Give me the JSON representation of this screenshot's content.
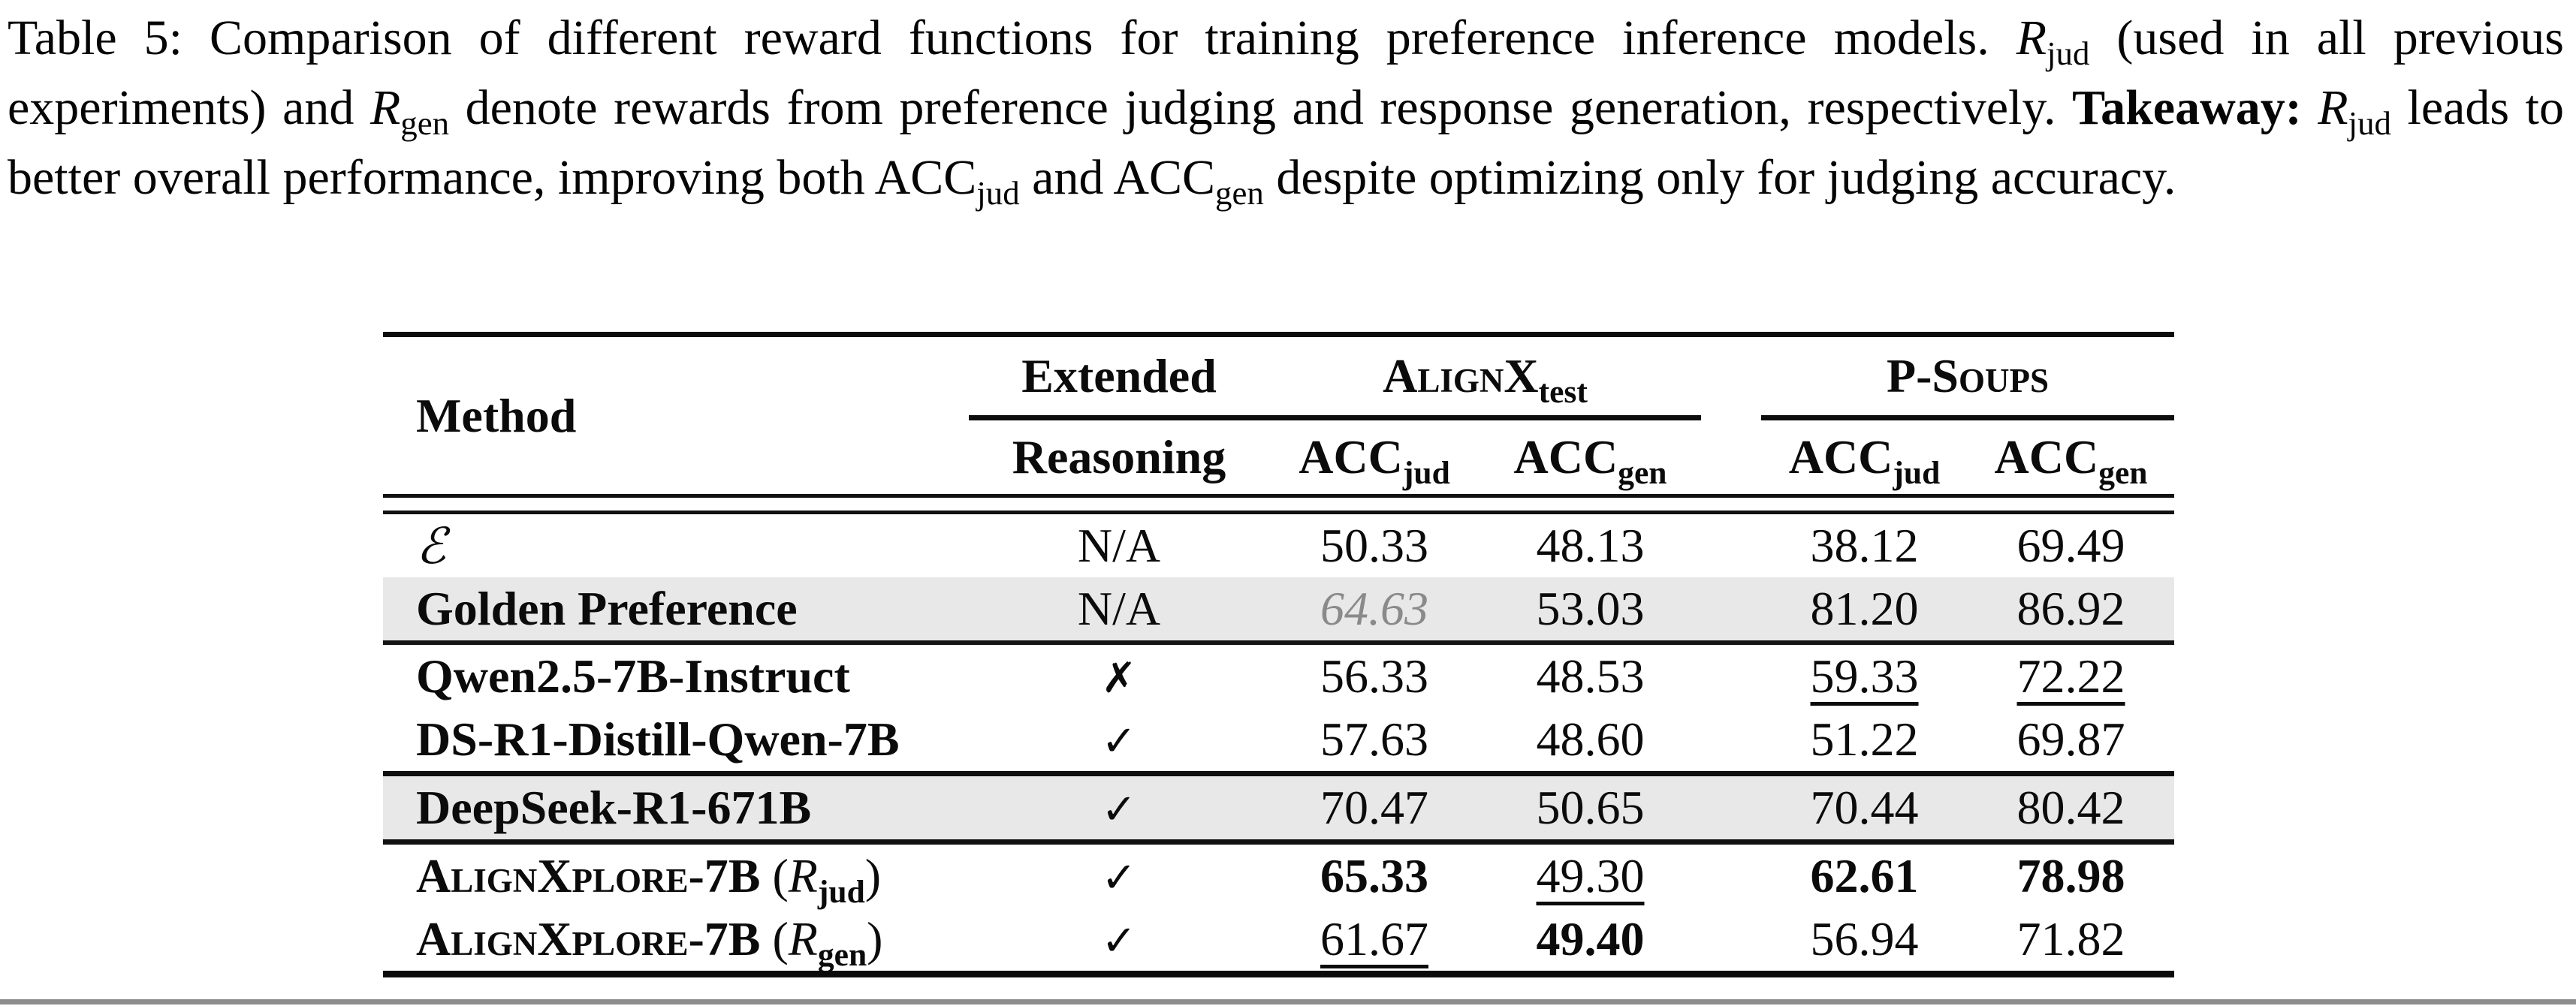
{
  "caption": {
    "line1": {
      "text": "Table 5: Comparison of different reward functions for training preference inference models. ",
      "math_r": "R",
      "sub": "jud"
    },
    "line2": {
      "pre": " (used in all previous experiments) and ",
      "math_r": "R",
      "sub": "gen",
      "post": " denote rewards from preference judging and response generation, respectively. "
    },
    "line3": {
      "takeaway": "Takeaway: ",
      "math_r": "R",
      "sub": "jud",
      "post": " leads to better overall performance, improving both ACC",
      "acc_sub": "jud"
    },
    "line4": {
      "pre": " and ACC",
      "acc_sub": "gen",
      "post": " despite optimizing only for judging accuracy."
    }
  },
  "table": {
    "header": {
      "method": "Method",
      "extended": "Extended",
      "reasoning": "Reasoning",
      "group1": {
        "name": "AlignX",
        "sub": "test"
      },
      "group2": {
        "name": "P-Soups"
      },
      "acc": "ACC",
      "jud": "jud",
      "gen": "gen"
    },
    "rows": [
      {
        "method": "ℰ",
        "ext": "N/A",
        "vals": [
          "50.33",
          "48.13",
          "38.12",
          "69.49"
        ]
      },
      {
        "method": "Golden Preference",
        "ext": "N/A",
        "vals": [
          "64.63",
          "53.03",
          "81.20",
          "86.92"
        ]
      },
      {
        "method": "Qwen2.5-7B-Instruct",
        "ext": "✗",
        "vals": [
          "56.33",
          "48.53",
          "59.33",
          "72.22"
        ]
      },
      {
        "method": "DS-R1-Distill-Qwen-7B",
        "ext": "✓",
        "vals": [
          "57.63",
          "48.60",
          "51.22",
          "69.87"
        ]
      },
      {
        "method": "DeepSeek-R1-671B",
        "ext": "✓",
        "vals": [
          "70.47",
          "50.65",
          "70.44",
          "80.42"
        ]
      },
      {
        "method": "AlignXplore-7B",
        "paren_open": " (",
        "math_r": "R",
        "sub": "jud",
        "paren_close": ")",
        "ext": "✓",
        "vals": [
          "65.33",
          "49.30",
          "62.61",
          "78.98"
        ]
      },
      {
        "method": "AlignXplore-7B",
        "paren_open": " (",
        "math_r": "R",
        "sub": "gen",
        "paren_close": ")",
        "ext": "✓",
        "vals": [
          "61.67",
          "49.40",
          "56.94",
          "71.82"
        ]
      }
    ],
    "colors": {
      "row_shading": "#e8e8e8",
      "muted_value": "#8a8a8a",
      "rule_color": "#111111",
      "bottom_bar": "#8c8c8c"
    }
  }
}
